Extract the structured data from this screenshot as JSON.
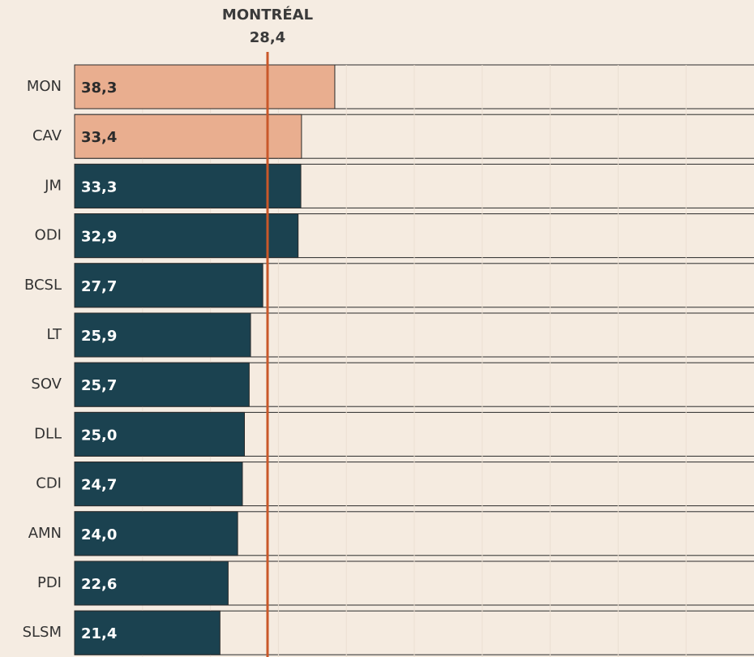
{
  "chart_data": {
    "type": "barh",
    "categories": [
      "MON",
      "CAV",
      "JM",
      "ODI",
      "BCSL",
      "LT",
      "SOV",
      "DLL",
      "CDI",
      "AMN",
      "PDI",
      "SLSM"
    ],
    "values": [
      38.3,
      33.4,
      33.3,
      32.9,
      27.7,
      25.9,
      25.7,
      25.0,
      24.7,
      24.0,
      22.6,
      21.4
    ],
    "value_labels": [
      "38,3",
      "33,4",
      "33,3",
      "32,9",
      "27,7",
      "25,9",
      "25,7",
      "25,0",
      "24,7",
      "24,0",
      "22,6",
      "21,4"
    ],
    "colors": [
      "#e9ae8f",
      "#e9ae8f",
      "#1b4250",
      "#1b4250",
      "#1b4250",
      "#1b4250",
      "#1b4250",
      "#1b4250",
      "#1b4250",
      "#1b4250",
      "#1b4250",
      "#1b4250"
    ],
    "xlim": [
      0,
      100
    ],
    "xticks": [
      10,
      20,
      30,
      40,
      50,
      60,
      70,
      80,
      90
    ],
    "grid": true,
    "reference": {
      "label": "MONTRÉAL",
      "value": 28.4,
      "value_label": "28,4",
      "color": "#c9582a"
    }
  }
}
